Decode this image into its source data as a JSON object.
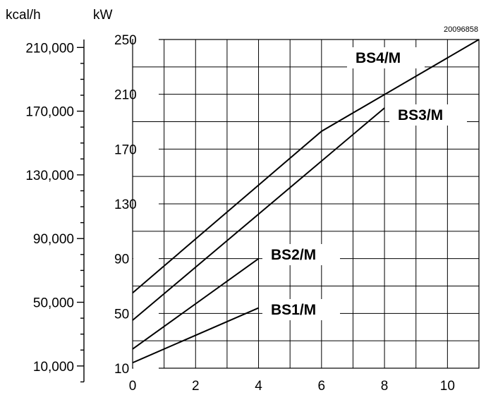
{
  "chart_data": {
    "type": "line",
    "code": "20096858",
    "left_axis_unit": "kcal/h",
    "inner_axis_unit": "kW",
    "xlim": [
      0,
      11
    ],
    "ylim": [
      10,
      250
    ],
    "x_ticks": [
      "0",
      "2",
      "4",
      "6",
      "8",
      "10"
    ],
    "x_tick_values": [
      0,
      2,
      4,
      6,
      8,
      10
    ],
    "kw_ticks": [
      "10",
      "50",
      "90",
      "130",
      "170",
      "210",
      "250"
    ],
    "kw_tick_values": [
      10,
      50,
      90,
      130,
      170,
      210,
      250
    ],
    "kcal_ticks": [
      "10,000",
      "50,000",
      "90,000",
      "130,000",
      "170,000",
      "210,000"
    ],
    "kcal_tick_values": [
      10000,
      50000,
      90000,
      130000,
      170000,
      210000
    ],
    "kcal_per_kw": 860,
    "grid": true,
    "series": [
      {
        "name": "BS1/M",
        "x": [
          0,
          4
        ],
        "y": [
          14,
          54
        ]
      },
      {
        "name": "BS2/M",
        "x": [
          0,
          4
        ],
        "y": [
          24,
          90
        ]
      },
      {
        "name": "BS3/M",
        "x": [
          0,
          8
        ],
        "y": [
          45,
          200
        ]
      },
      {
        "name": "BS4/M",
        "x": [
          0,
          6,
          11
        ],
        "y": [
          65,
          183,
          250
        ]
      }
    ]
  }
}
